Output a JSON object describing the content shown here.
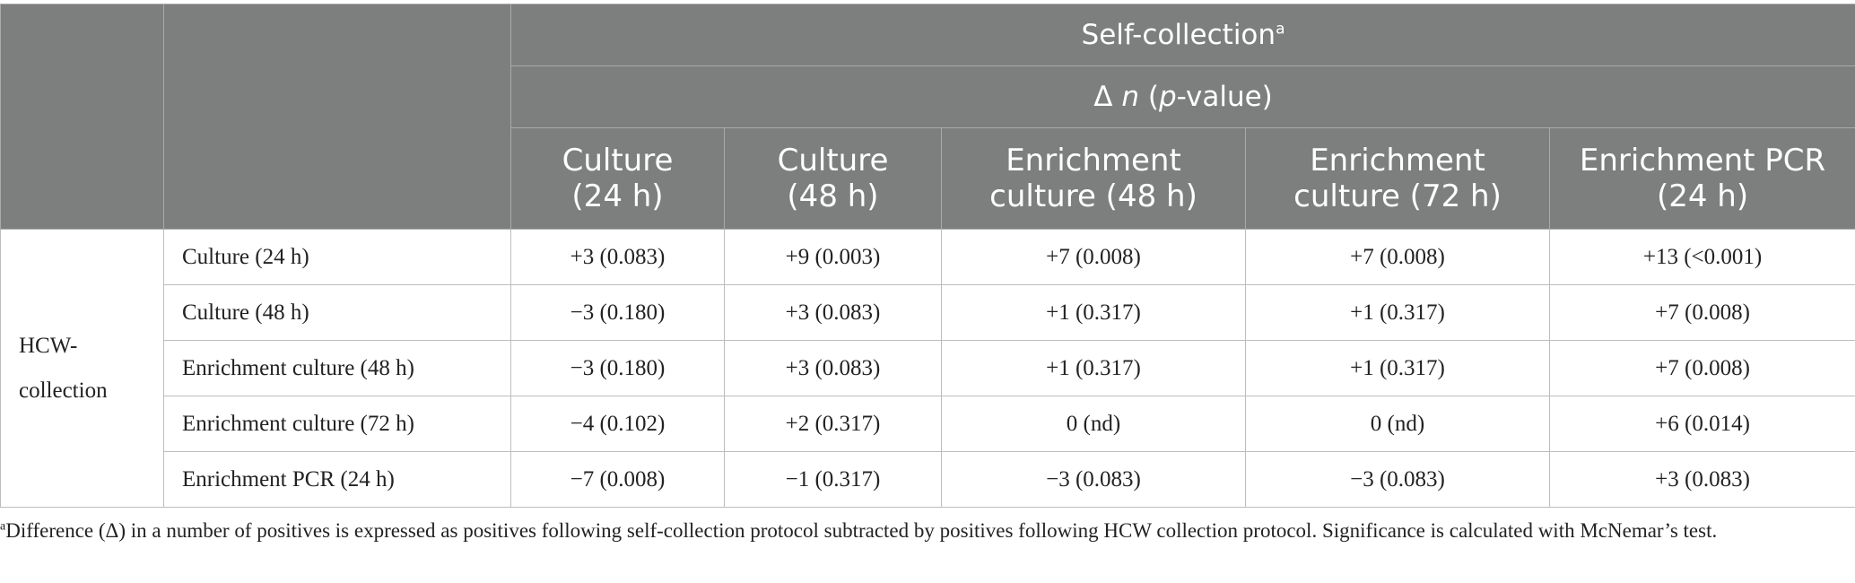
{
  "header": {
    "group_title": "Self-collection",
    "group_title_sup": "a",
    "delta_prefix": "Δ ",
    "delta_n": "n",
    "delta_open": " (",
    "delta_p": "p",
    "delta_suffix": "-value)",
    "columns": [
      {
        "line1": "Culture",
        "line2": "(24 h)"
      },
      {
        "line1": "Culture",
        "line2": "(48 h)"
      },
      {
        "line1": "Enrichment",
        "line2": "culture (48 h)"
      },
      {
        "line1": "Enrichment",
        "line2": "culture (72 h)"
      },
      {
        "line1": "Enrichment PCR",
        "line2": "(24 h)"
      }
    ]
  },
  "row_group": {
    "line1": "HCW-",
    "line2": "collection"
  },
  "rows": [
    {
      "label": "Culture (24 h)",
      "cells": [
        "+3 (0.083)",
        "+9 (0.003)",
        "+7 (0.008)",
        "+7 (0.008)",
        "+13 (<0.001)"
      ]
    },
    {
      "label": "Culture (48 h)",
      "cells": [
        "−3 (0.180)",
        "+3 (0.083)",
        "+1 (0.317)",
        "+1 (0.317)",
        "+7 (0.008)"
      ]
    },
    {
      "label": "Enrichment culture (48 h)",
      "cells": [
        "−3 (0.180)",
        "+3 (0.083)",
        "+1 (0.317)",
        "+1 (0.317)",
        "+7 (0.008)"
      ]
    },
    {
      "label": "Enrichment culture (72 h)",
      "cells": [
        "−4 (0.102)",
        "+2 (0.317)",
        "0 (nd)",
        "0 (nd)",
        "+6 (0.014)"
      ]
    },
    {
      "label": "Enrichment PCR (24 h)",
      "cells": [
        "−7 (0.008)",
        "−1 (0.317)",
        "−3 (0.083)",
        "−3 (0.083)",
        "+3 (0.083)"
      ]
    }
  ],
  "footnote": {
    "sup": "a",
    "text": "Difference (Δ) in a number of positives is expressed as positives following self-collection protocol subtracted by positives following HCW collection protocol. Significance is calculated with McNemar’s test."
  }
}
